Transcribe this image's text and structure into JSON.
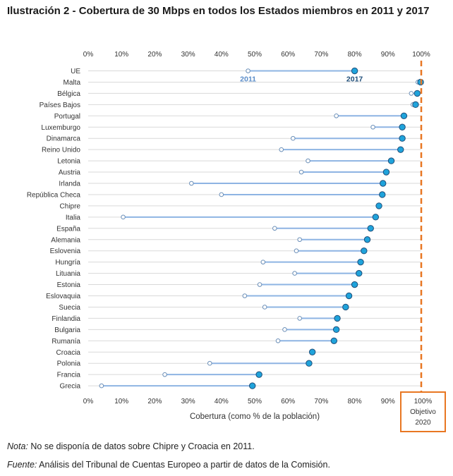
{
  "title": "Ilustración 2 - Cobertura de 30 Mbps en todos los Estados miembros en 2011 y 2017",
  "chart_data": {
    "type": "dumbbell",
    "xlabel": "Cobertura (como % de la población)",
    "xlim": [
      0,
      100
    ],
    "xticks": [
      "0%",
      "10%",
      "20%",
      "30%",
      "40%",
      "50%",
      "60%",
      "70%",
      "80%",
      "90%",
      "100%"
    ],
    "grid": "horizontal",
    "series_labels": {
      "start": "2011",
      "end": "2017"
    },
    "target": {
      "value": 100,
      "label_value": "100%",
      "label_line1": "Objetivo",
      "label_line2": "2020",
      "color": "#E87722"
    },
    "colors": {
      "line": "#8EB4E3",
      "dot_2017": "#1FA3DB",
      "dot_2017_stroke": "#1F4E79",
      "dot_2011_stroke": "#6B8FB8",
      "label": "#5B8DC9",
      "grid": "#D9D9D9"
    },
    "categories": [
      "UE",
      "Malta",
      "Bélgica",
      "Países Bajos",
      "Portugal",
      "Luxemburgo",
      "Dinamarca",
      "Reino Unido",
      "Letonia",
      "Austria",
      "Irlanda",
      "República Checa",
      "Chipre",
      "Italia",
      "España",
      "Alemania",
      "Eslovenia",
      "Hungría",
      "Lituania",
      "Estonia",
      "Eslovaquia",
      "Suecia",
      "Finlandia",
      "Bulgaria",
      "Rumanía",
      "Croacia",
      "Polonia",
      "Francia",
      "Grecia"
    ],
    "values_2011": [
      48,
      99,
      97,
      97.5,
      74.5,
      85.5,
      61.5,
      58,
      66,
      64,
      31,
      40,
      null,
      10.5,
      56,
      63.5,
      62.5,
      52.5,
      62,
      51.5,
      47,
      53,
      63.5,
      59,
      57,
      null,
      36.5,
      23,
      4
    ],
    "values_2017": [
      80,
      99.8,
      98.8,
      98.3,
      94.8,
      94.3,
      94.3,
      93.8,
      91,
      89.5,
      88.5,
      88.3,
      87.3,
      86.3,
      84.8,
      83.8,
      82.8,
      81.8,
      81.3,
      80,
      78.3,
      77.3,
      74.8,
      74.5,
      73.8,
      67.3,
      66.3,
      51.3,
      49.3
    ]
  },
  "notes": {
    "nota_label": "Nota:",
    "nota_text": " No se disponía de datos sobre Chipre y Croacia en 2011.",
    "fuente_label": "Fuente:",
    "fuente_text": " Análisis del Tribunal de Cuentas Europeo a partir de datos de la Comisión."
  }
}
